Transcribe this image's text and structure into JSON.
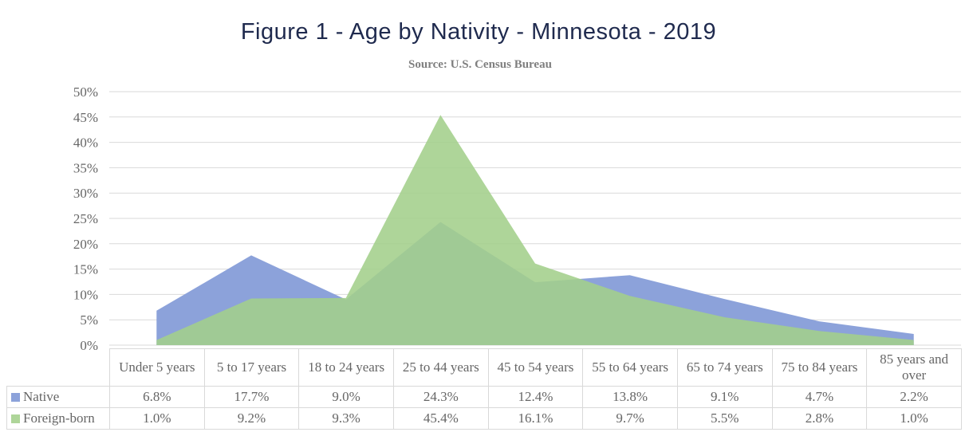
{
  "header": {
    "title": "Figure 1 - Age by Nativity - Minnesota - 2019",
    "subtitle": "Source: U.S. Census Bureau"
  },
  "theme": {
    "background": "#FFFFFF",
    "title_color": "#1F2A4E",
    "subtitle_color": "#7F7F7F",
    "axis_text_color": "#666666",
    "gridline_color": "#D9D9D9",
    "table_border_color": "#D9D9D9",
    "table_text_color": "#666666"
  },
  "chart_data": {
    "type": "area",
    "title": "Figure 1 - Age by Nativity - Minnesota - 2019",
    "subtitle": "Source: U.S. Census Bureau",
    "categories": [
      "Under 5 years",
      "5 to 17 years",
      "18 to 24 years",
      "25 to 44 years",
      "45 to 54 years",
      "55 to 64 years",
      "65 to 74 years",
      "75 to 84 years",
      "85 years and over"
    ],
    "series": [
      {
        "name": "Native",
        "color": "#8CA2DA",
        "opacity": 1,
        "values": [
          6.8,
          17.7,
          9.0,
          24.3,
          12.4,
          13.8,
          9.1,
          4.7,
          2.2
        ]
      },
      {
        "name": "Foreign-born",
        "color": "#A3CF8B",
        "opacity": 0.88,
        "values": [
          1.0,
          9.2,
          9.3,
          45.4,
          16.1,
          9.7,
          5.5,
          2.8,
          1.0
        ]
      }
    ],
    "value_suffix": "%",
    "y_axis": {
      "min": 0,
      "max": 50,
      "step": 5,
      "tick_labels": [
        "0%",
        "5%",
        "10%",
        "15%",
        "20%",
        "25%",
        "30%",
        "35%",
        "40%",
        "45%",
        "50%"
      ]
    },
    "grid": true,
    "legend_position": "table-left",
    "xlabel": "",
    "ylabel": ""
  }
}
